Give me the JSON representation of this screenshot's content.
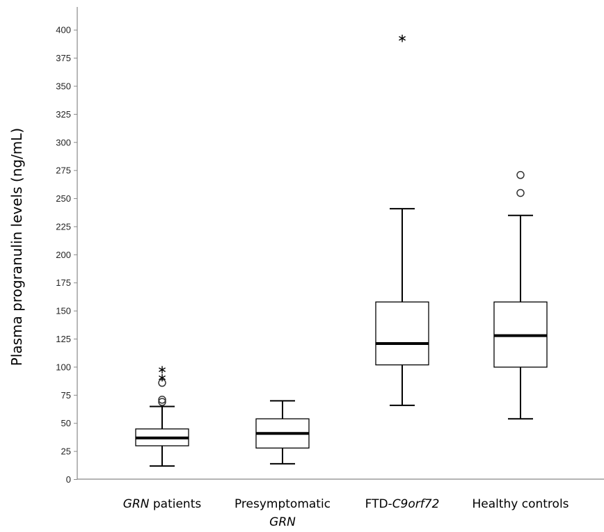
{
  "chart_data": {
    "type": "box",
    "ylabel": "Plasma progranulin levels (ng/mL)",
    "xlabel": "",
    "title": "",
    "ylim": [
      0,
      420
    ],
    "yticks": [
      0,
      25,
      50,
      75,
      100,
      125,
      150,
      175,
      200,
      225,
      250,
      275,
      300,
      325,
      350,
      375,
      400
    ],
    "grid": false,
    "categories": [
      {
        "parts": [
          {
            "text": "GRN",
            "italic": true
          },
          {
            "text": " patients",
            "italic": false
          }
        ]
      },
      {
        "lines": [
          [
            {
              "text": "Presymptomatic",
              "italic": false
            }
          ],
          [
            {
              "text": "GRN",
              "italic": true
            }
          ]
        ]
      },
      {
        "parts": [
          {
            "text": "FTD-",
            "italic": false
          },
          {
            "text": "C9orf72",
            "italic": true
          }
        ]
      },
      {
        "parts": [
          {
            "text": "Healthy controls",
            "italic": false
          }
        ]
      }
    ],
    "boxes": [
      {
        "whisker_low": 12,
        "q1": 30,
        "median": 37,
        "q3": 45,
        "whisker_high": 65,
        "outliers": [
          69,
          71,
          86
        ],
        "extremes": [
          91,
          98
        ]
      },
      {
        "whisker_low": 14,
        "q1": 28,
        "median": 41,
        "q3": 54,
        "whisker_high": 70,
        "outliers": [],
        "extremes": []
      },
      {
        "whisker_low": 66,
        "q1": 102,
        "median": 121,
        "q3": 158,
        "whisker_high": 241,
        "outliers": [],
        "extremes": [
          393
        ]
      },
      {
        "whisker_low": 54,
        "q1": 100,
        "median": 128,
        "q3": 158,
        "whisker_high": 235,
        "outliers": [
          255,
          271
        ],
        "extremes": []
      }
    ],
    "outlier_marker": "circle",
    "extreme_marker": "star"
  }
}
